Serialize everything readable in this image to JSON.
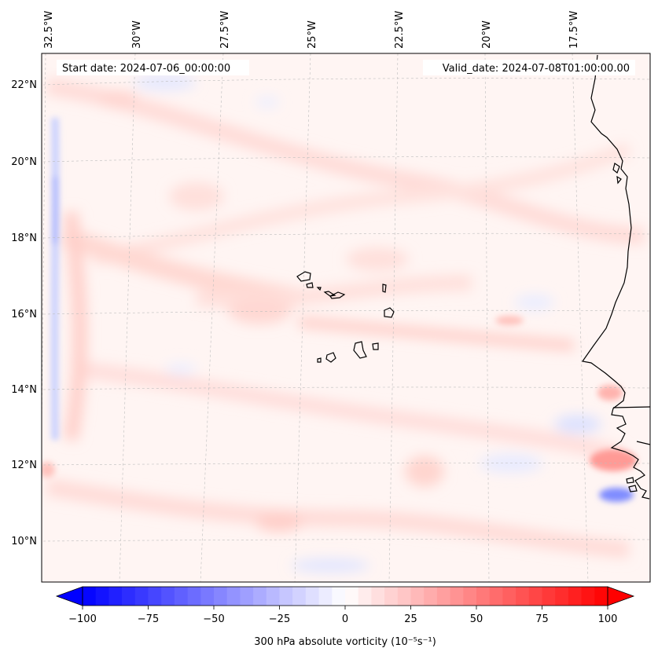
{
  "map": {
    "start_date": "Start date: 2024-07-06_00:00:00",
    "valid_date": "Valid_date: 2024-07-08T01:00:00.00",
    "lon_labels": [
      "32.5°W",
      "30°W",
      "27.5°W",
      "25°W",
      "22.5°W",
      "20°W",
      "17.5°W"
    ],
    "lat_labels": [
      "22°N",
      "20°N",
      "18°N",
      "16°N",
      "14°N",
      "12°N",
      "10°N"
    ],
    "gridlines": true,
    "coastlines": true
  },
  "colorbar": {
    "label": "300 hPa absolute vorticity (10⁻⁵s⁻¹)",
    "ticks": [
      "−100",
      "−75",
      "−50",
      "−25",
      "0",
      "25",
      "50",
      "75",
      "100"
    ],
    "range": [
      -100,
      100
    ],
    "extend": "both",
    "colormap": "bwr",
    "low_color": "#0000ff",
    "mid_color": "#ffffff",
    "high_color": "#ff0000"
  }
}
